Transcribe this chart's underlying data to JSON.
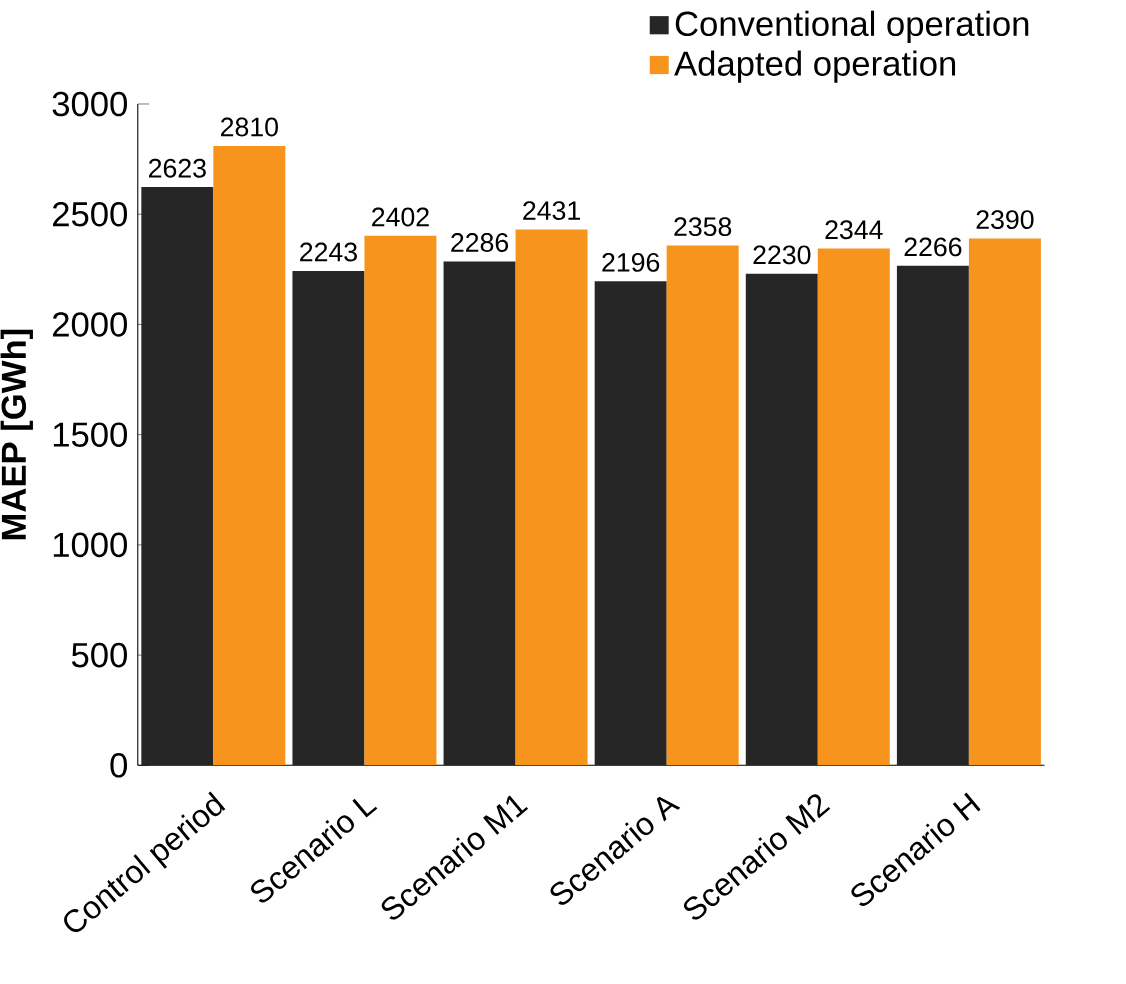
{
  "chart_data": {
    "type": "bar",
    "ylabel": "MAEP [GWh]",
    "categories": [
      "Control period",
      "Scenario L",
      "Scenario M1",
      "Scenario A",
      "Scenario M2",
      "Scenario H"
    ],
    "series": [
      {
        "name": "Conventional operation",
        "color": "#262626",
        "values": [
          2623,
          2243,
          2286,
          2196,
          2230,
          2266
        ]
      },
      {
        "name": "Adapted operation",
        "color": "#f7941d",
        "values": [
          2810,
          2402,
          2431,
          2358,
          2344,
          2390
        ]
      }
    ],
    "ylim": [
      0,
      3000
    ],
    "yticks": [
      0,
      500,
      1000,
      1500,
      2000,
      2500,
      3000
    ],
    "data_labels": true,
    "legend": "top right",
    "grid": false
  }
}
